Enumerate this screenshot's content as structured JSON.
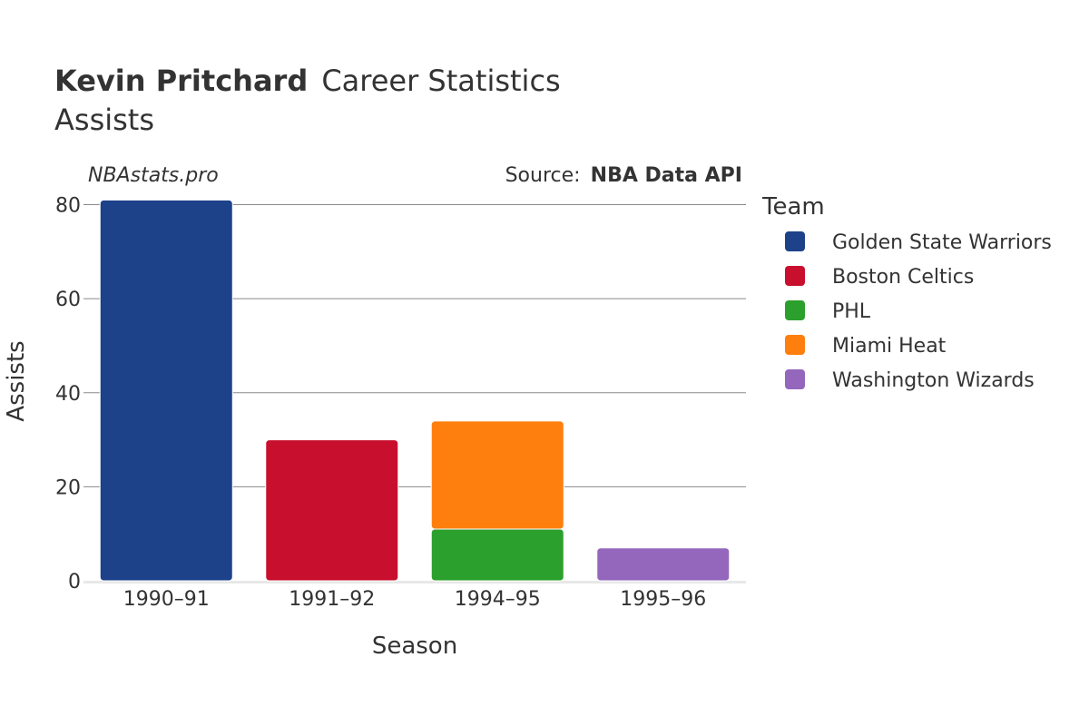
{
  "header": {
    "title_bold": "Kevin Pritchard",
    "title_rest": "Career Statistics",
    "subtitle": "Assists",
    "watermark": "NBAstats.pro",
    "source_label": "Source:",
    "source_value": "NBA Data API"
  },
  "legend": {
    "title": "Team",
    "items": [
      {
        "label": "Golden State Warriors",
        "color": "#1d428a"
      },
      {
        "label": "Boston Celtics",
        "color": "#c8102e"
      },
      {
        "label": "PHL",
        "color": "#2ca02c"
      },
      {
        "label": "Miami Heat",
        "color": "#ff7f0e"
      },
      {
        "label": "Washington Wizards",
        "color": "#9467bd"
      }
    ]
  },
  "chart_data": {
    "type": "bar",
    "stacked": true,
    "xlabel": "Season",
    "ylabel": "Assists",
    "categories": [
      "1990–91",
      "1991–92",
      "1994–95",
      "1995–96"
    ],
    "ylim": [
      0,
      83
    ],
    "yticks": [
      0,
      20,
      40,
      60,
      80
    ],
    "grid": true,
    "legend_position": "right",
    "series": [
      {
        "name": "Golden State Warriors",
        "color": "#1d428a",
        "values": [
          81,
          0,
          0,
          0
        ]
      },
      {
        "name": "Boston Celtics",
        "color": "#c8102e",
        "values": [
          0,
          30,
          0,
          0
        ]
      },
      {
        "name": "PHL",
        "color": "#2ca02c",
        "values": [
          0,
          0,
          11,
          0
        ]
      },
      {
        "name": "Miami Heat",
        "color": "#ff7f0e",
        "values": [
          0,
          0,
          23,
          0
        ]
      },
      {
        "name": "Washington Wizards",
        "color": "#9467bd",
        "values": [
          0,
          0,
          0,
          7
        ]
      }
    ]
  }
}
